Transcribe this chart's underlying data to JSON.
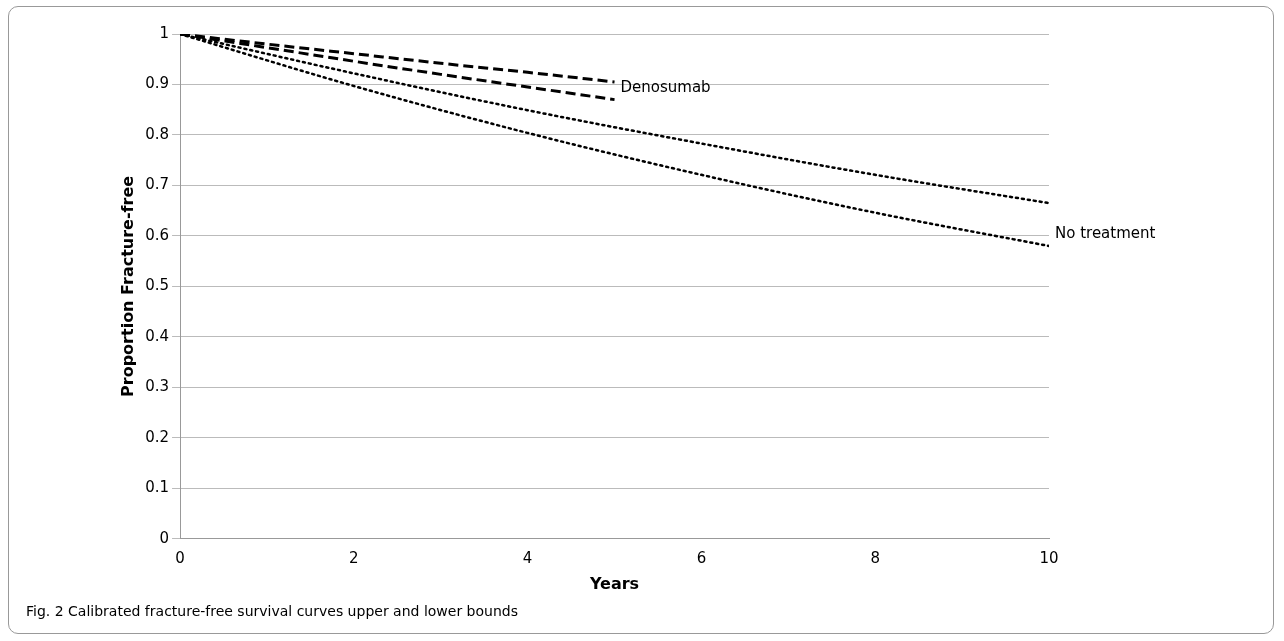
{
  "chart_data": {
    "type": "line",
    "xlabel": "Years",
    "ylabel": "Proportion Fracture-free",
    "annotations": [
      "Fig. 2  Calibrated fracture-free survival curves upper and lower bounds"
    ],
    "series": [
      {
        "color": "#000000",
        "line_style": "dashed",
        "x": [
          0,
          1,
          2,
          3,
          4,
          5
        ],
        "values": [
          1,
          0.98,
          0.961,
          0.942,
          0.924,
          0.905
        ]
      },
      {
        "name": "Denosumab",
        "color": "#000000",
        "line_style": "dashed",
        "x": [
          0,
          1,
          2,
          3,
          4,
          5
        ],
        "values": [
          1,
          0.973,
          0.946,
          0.92,
          0.895,
          0.87
        ]
      },
      {
        "color": "#000000",
        "line_style": "dotted",
        "x": [
          0,
          2,
          4,
          6,
          8,
          10
        ],
        "values": [
          1,
          0.922,
          0.849,
          0.783,
          0.721,
          0.665
        ]
      },
      {
        "name": "No treatment",
        "color": "#000000",
        "line_style": "dotted",
        "x": [
          0,
          2,
          4,
          6,
          8,
          10
        ],
        "values": [
          1,
          0.897,
          0.804,
          0.721,
          0.646,
          0.58
        ]
      }
    ],
    "xlim": [
      0,
      10
    ],
    "xticks": [
      0,
      2,
      4,
      6,
      8,
      10
    ],
    "ylim": [
      0,
      1
    ],
    "yticks": [
      0,
      0.1,
      0.2,
      0.3,
      0.4,
      0.5,
      0.6,
      0.7,
      0.8,
      0.9,
      1
    ],
    "grid": "y",
    "marker": "none",
    "legend": false
  }
}
